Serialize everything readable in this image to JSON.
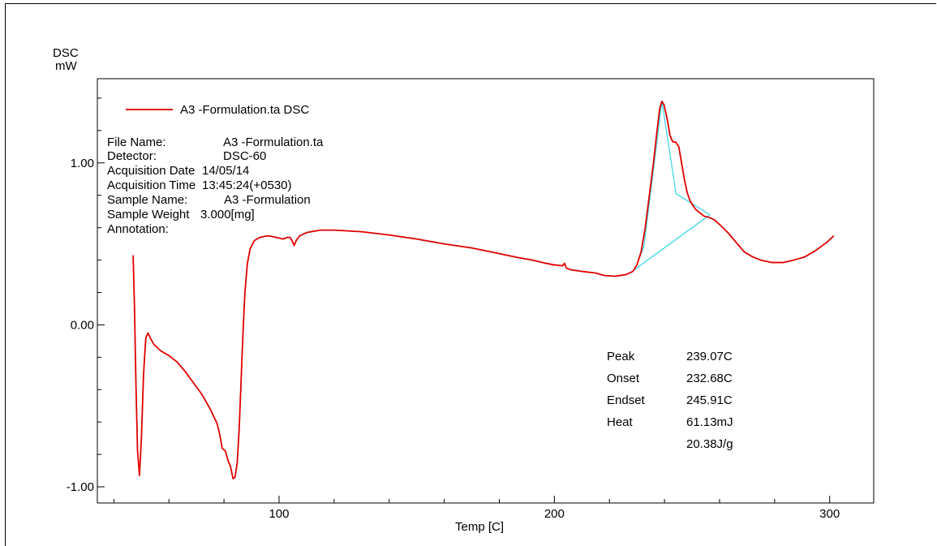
{
  "chart_data": {
    "type": "line",
    "ylabel_line1": "DSC",
    "ylabel_line2": "mW",
    "xlabel": "Temp [C]",
    "xlim": [
      34,
      316
    ],
    "ylim": [
      -1.1,
      1.52
    ],
    "x_ticks": [
      {
        "value": 100,
        "label": "100"
      },
      {
        "value": 200,
        "label": "200"
      },
      {
        "value": 300,
        "label": "300"
      }
    ],
    "y_ticks": [
      {
        "value": 1.0,
        "label": "1.00"
      },
      {
        "value": 0.0,
        "label": "0.00"
      },
      {
        "value": -1.0,
        "label": "-1.00"
      }
    ],
    "x_minor_step": 20,
    "y_minor_step": 0.2,
    "grid": false,
    "legend": {
      "position": "top-left",
      "label": "A3 -Formulation.ta DSC"
    },
    "series": [
      {
        "name": "A3 -Formulation.ta DSC",
        "color": "#e00000",
        "points": [
          [
            47.0,
            0.43
          ],
          [
            47.5,
            0.1
          ],
          [
            48.0,
            -0.35
          ],
          [
            48.6,
            -0.78
          ],
          [
            49.3,
            -0.93
          ],
          [
            50.0,
            -0.7
          ],
          [
            50.8,
            -0.3
          ],
          [
            51.6,
            -0.08
          ],
          [
            52.4,
            -0.05
          ],
          [
            53.2,
            -0.08
          ],
          [
            54.5,
            -0.12
          ],
          [
            57.0,
            -0.16
          ],
          [
            60.0,
            -0.19
          ],
          [
            63.0,
            -0.23
          ],
          [
            66.0,
            -0.29
          ],
          [
            69.0,
            -0.36
          ],
          [
            72.0,
            -0.43
          ],
          [
            75.0,
            -0.52
          ],
          [
            77.5,
            -0.61
          ],
          [
            78.5,
            -0.68
          ],
          [
            79.3,
            -0.76
          ],
          [
            80.5,
            -0.78
          ],
          [
            81.5,
            -0.84
          ],
          [
            82.3,
            -0.87
          ],
          [
            83.3,
            -0.95
          ],
          [
            84.0,
            -0.94
          ],
          [
            84.8,
            -0.85
          ],
          [
            85.5,
            -0.65
          ],
          [
            86.2,
            -0.35
          ],
          [
            86.9,
            -0.05
          ],
          [
            87.6,
            0.2
          ],
          [
            88.5,
            0.38
          ],
          [
            89.5,
            0.47
          ],
          [
            91.0,
            0.52
          ],
          [
            93.0,
            0.54
          ],
          [
            96.0,
            0.55
          ],
          [
            99.0,
            0.54
          ],
          [
            101.5,
            0.53
          ],
          [
            103.0,
            0.54
          ],
          [
            104.0,
            0.54
          ],
          [
            105.0,
            0.51
          ],
          [
            105.5,
            0.49
          ],
          [
            106.2,
            0.52
          ],
          [
            107.5,
            0.55
          ],
          [
            110.0,
            0.57
          ],
          [
            115.0,
            0.585
          ],
          [
            120.0,
            0.585
          ],
          [
            130.0,
            0.575
          ],
          [
            140.0,
            0.555
          ],
          [
            150.0,
            0.53
          ],
          [
            160.0,
            0.5
          ],
          [
            170.0,
            0.475
          ],
          [
            180.0,
            0.44
          ],
          [
            187.0,
            0.415
          ],
          [
            192.0,
            0.4
          ],
          [
            197.0,
            0.38
          ],
          [
            200.0,
            0.37
          ],
          [
            203.0,
            0.365
          ],
          [
            203.7,
            0.38
          ],
          [
            204.4,
            0.35
          ],
          [
            206.0,
            0.34
          ],
          [
            210.0,
            0.33
          ],
          [
            215.0,
            0.32
          ],
          [
            218.0,
            0.305
          ],
          [
            222.0,
            0.3
          ],
          [
            226.0,
            0.31
          ],
          [
            228.5,
            0.33
          ],
          [
            230.0,
            0.37
          ],
          [
            231.5,
            0.45
          ],
          [
            233.0,
            0.6
          ],
          [
            234.5,
            0.8
          ],
          [
            236.0,
            1.0
          ],
          [
            237.3,
            1.2
          ],
          [
            238.3,
            1.34
          ],
          [
            239.07,
            1.38
          ],
          [
            239.8,
            1.36
          ],
          [
            241.0,
            1.27
          ],
          [
            242.0,
            1.17
          ],
          [
            243.0,
            1.13
          ],
          [
            244.0,
            1.13
          ],
          [
            245.2,
            1.1
          ],
          [
            246.2,
            1.0
          ],
          [
            247.2,
            0.9
          ],
          [
            248.2,
            0.82
          ],
          [
            249.2,
            0.77
          ],
          [
            250.2,
            0.74
          ],
          [
            251.5,
            0.71
          ],
          [
            253.0,
            0.69
          ],
          [
            254.5,
            0.67
          ],
          [
            256.0,
            0.665
          ],
          [
            258.0,
            0.65
          ],
          [
            260.0,
            0.62
          ],
          [
            263.0,
            0.57
          ],
          [
            266.0,
            0.51
          ],
          [
            269.0,
            0.45
          ],
          [
            272.0,
            0.42
          ],
          [
            275.0,
            0.4
          ],
          [
            279.0,
            0.385
          ],
          [
            283.0,
            0.385
          ],
          [
            287.0,
            0.4
          ],
          [
            291.0,
            0.42
          ],
          [
            295.0,
            0.46
          ],
          [
            299.0,
            0.51
          ],
          [
            301.5,
            0.55
          ]
        ]
      }
    ],
    "analysis_lines": [
      {
        "color": "#40d8e8",
        "points": [
          [
            229.0,
            0.34
          ],
          [
            256.5,
            0.68
          ]
        ]
      },
      {
        "color": "#40d8e8",
        "points": [
          [
            230.5,
            0.4
          ],
          [
            232.5,
            0.48
          ],
          [
            239.07,
            1.38
          ],
          [
            244.2,
            0.81
          ],
          [
            256.5,
            0.68
          ]
        ]
      }
    ]
  },
  "file_info": {
    "rows": [
      {
        "label": "File Name:",
        "value": "A3 -Formulation.ta"
      },
      {
        "label": "Detector:",
        "value": "DSC-60"
      },
      {
        "label": "Acquisition Date",
        "value": "14/05/14"
      },
      {
        "label": "Acquisition Time",
        "value": "13:45:24(+0530)"
      },
      {
        "label": "Sample Name:",
        "value": "A3 -Formulation"
      },
      {
        "label": "Sample Weight",
        "value": "3.000[mg]"
      },
      {
        "label": "Annotation:",
        "value": ""
      }
    ]
  },
  "peak_results": {
    "rows": [
      {
        "label": "Peak",
        "value": "239.07C"
      },
      {
        "label": "Onset",
        "value": "232.68C"
      },
      {
        "label": "Endset",
        "value": "245.91C"
      },
      {
        "label": "Heat",
        "value": "61.13mJ"
      },
      {
        "label": "",
        "value": "20.38J/g"
      }
    ]
  }
}
